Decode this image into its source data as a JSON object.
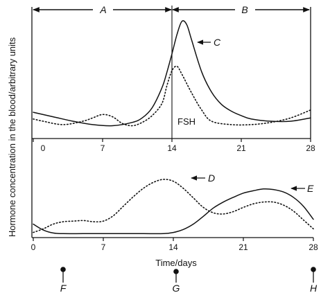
{
  "chart_data": [
    {
      "type": "line",
      "title": "",
      "xlabel": "",
      "ylabel": "Hormone concentration in the blood/arbitrary units",
      "x_ticks": [
        "0",
        "7",
        "14",
        "21",
        "28"
      ],
      "xlim": [
        0,
        28
      ],
      "ylim": [
        0,
        100
      ],
      "grid": false,
      "phases": [
        {
          "label": "A",
          "range": [
            0,
            14
          ]
        },
        {
          "label": "B",
          "range": [
            14,
            28
          ]
        }
      ],
      "series": [
        {
          "name": "C",
          "style": "solid",
          "x": [
            0,
            2,
            4,
            6,
            8,
            10,
            11,
            12,
            13,
            13.5,
            14,
            14.5,
            15,
            15.5,
            16,
            17,
            18,
            19,
            20,
            21,
            22,
            24,
            26,
            28
          ],
          "y": [
            16,
            12,
            8,
            5,
            4,
            7,
            11,
            20,
            38,
            52,
            68,
            85,
            97,
            94,
            80,
            52,
            34,
            23,
            17,
            13,
            10,
            8,
            8,
            11
          ]
        },
        {
          "name": "FSH",
          "style": "dotted",
          "x": [
            0,
            1,
            3,
            5,
            6,
            7,
            8,
            9,
            10,
            11,
            12,
            13,
            13.5,
            14,
            14.5,
            15,
            16,
            17,
            18,
            20,
            22,
            24,
            26,
            28
          ],
          "y": [
            10,
            8,
            5,
            8,
            11,
            14,
            12,
            6,
            4,
            7,
            13,
            24,
            40,
            53,
            57,
            50,
            33,
            18,
            8,
            5,
            5,
            7,
            11,
            18
          ]
        }
      ]
    },
    {
      "type": "line",
      "title": "",
      "xlabel": "Time/days",
      "ylabel": "Hormone concentration in the blood/arbitrary units",
      "x_ticks": [
        "0",
        "7",
        "14",
        "21",
        "28"
      ],
      "xlim": [
        0,
        28
      ],
      "ylim": [
        0,
        100
      ],
      "grid": false,
      "series": [
        {
          "name": "D",
          "style": "dotted",
          "x": [
            0,
            1,
            2,
            3,
            4,
            5,
            6,
            7,
            8,
            9,
            10,
            11,
            12,
            13,
            14,
            15,
            16,
            17,
            18,
            19,
            20,
            21,
            22,
            23,
            24,
            25,
            26,
            27,
            28
          ],
          "y": [
            4,
            10,
            18,
            22,
            23,
            24,
            22,
            23,
            32,
            48,
            64,
            78,
            88,
            93,
            90,
            78,
            62,
            46,
            37,
            35,
            39,
            46,
            52,
            55,
            55,
            50,
            40,
            25,
            10
          ]
        },
        {
          "name": "E",
          "style": "solid",
          "x": [
            0,
            1,
            2,
            3,
            5,
            7,
            9,
            11,
            13,
            14,
            15,
            16,
            17,
            18,
            19,
            20,
            21,
            22,
            23,
            24,
            25,
            26,
            27,
            28
          ],
          "y": [
            18,
            8,
            3,
            2,
            2,
            2,
            2,
            2,
            2,
            4,
            9,
            18,
            31,
            45,
            55,
            63,
            70,
            74,
            77,
            76,
            72,
            63,
            48,
            26
          ]
        }
      ]
    }
  ],
  "x_axis_title": "Time/days",
  "markers": [
    "F",
    "G",
    "H"
  ],
  "colors": {
    "ink": "#111111",
    "background": "#ffffff"
  }
}
